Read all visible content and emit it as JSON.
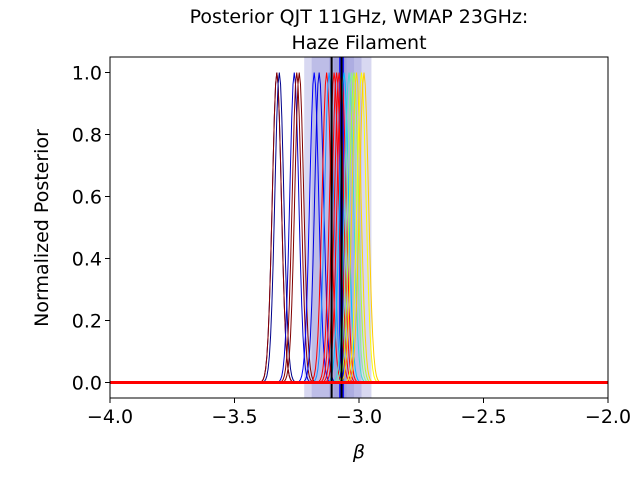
{
  "chart_data": {
    "type": "line",
    "title_lines": [
      "Posterior QJT 11GHz, WMAP 23GHz:",
      "Haze Filament"
    ],
    "xlabel": "β",
    "ylabel": "Normalized Posterior",
    "xlim": [
      -4.0,
      -2.0
    ],
    "ylim": [
      -0.05,
      1.05
    ],
    "x_ticks": [
      -4.0,
      -3.5,
      -3.0,
      -2.5,
      -2.0
    ],
    "x_tick_labels": [
      "−4.0",
      "−3.5",
      "−3.0",
      "−2.5",
      "−2.0"
    ],
    "y_ticks": [
      0.0,
      0.2,
      0.4,
      0.6,
      0.8,
      1.0
    ],
    "y_tick_labels": [
      "0.0",
      "0.2",
      "0.4",
      "0.6",
      "0.8",
      "1.0"
    ],
    "grid": false,
    "legend": "none",
    "shaded_bands": [
      {
        "x_range": [
          -3.22,
          -2.95
        ],
        "color": "#7f7fd0",
        "opacity": 0.3
      },
      {
        "x_range": [
          -3.19,
          -2.99
        ],
        "color": "#7f7fd0",
        "opacity": 0.3
      },
      {
        "x_range": [
          -3.12,
          -3.02
        ],
        "color": "#7f7fd0",
        "opacity": 0.25
      },
      {
        "x_range": [
          -3.1,
          -3.05
        ],
        "color": "#7f7fd0",
        "opacity": 0.25
      },
      {
        "x_range": [
          -3.08,
          -3.06
        ],
        "color": "#0000ff",
        "opacity": 0.85
      }
    ],
    "vertical_lines": [
      {
        "x": -3.11,
        "color": "#000000",
        "width": 2
      },
      {
        "x": -3.07,
        "color": "#000000",
        "width": 2
      }
    ],
    "series": [
      {
        "center": -3.33,
        "sigma": 0.018,
        "color": "#000080"
      },
      {
        "center": -3.33,
        "sigma": 0.018,
        "color": "#8b0000"
      },
      {
        "center": -3.32,
        "sigma": 0.018,
        "color": "#00008b"
      },
      {
        "center": -3.26,
        "sigma": 0.018,
        "color": "#0000cd"
      },
      {
        "center": -3.25,
        "sigma": 0.018,
        "color": "#8b0000"
      },
      {
        "center": -3.24,
        "sigma": 0.018,
        "color": "#800000"
      },
      {
        "center": -3.18,
        "sigma": 0.018,
        "color": "#0000ff"
      },
      {
        "center": -3.16,
        "sigma": 0.018,
        "color": "#0000dd"
      },
      {
        "center": -3.13,
        "sigma": 0.018,
        "color": "#ff0000"
      },
      {
        "center": -3.12,
        "sigma": 0.018,
        "color": "#1e90ff"
      },
      {
        "center": -3.1,
        "sigma": 0.018,
        "color": "#ff0000"
      },
      {
        "center": -3.09,
        "sigma": 0.018,
        "color": "#ff0000"
      },
      {
        "center": -3.08,
        "sigma": 0.018,
        "color": "#ff0000"
      },
      {
        "center": -3.07,
        "sigma": 0.018,
        "color": "#ff0000"
      },
      {
        "center": -3.06,
        "sigma": 0.018,
        "color": "#00bfff"
      },
      {
        "center": -3.04,
        "sigma": 0.018,
        "color": "#40e0d0"
      },
      {
        "center": -3.03,
        "sigma": 0.018,
        "color": "#90ee90"
      },
      {
        "center": -3.02,
        "sigma": 0.018,
        "color": "#adff2f"
      },
      {
        "center": -3.01,
        "sigma": 0.018,
        "color": "#ffd700"
      },
      {
        "center": -2.99,
        "sigma": 0.018,
        "color": "#ffff00"
      },
      {
        "center": -2.98,
        "sigma": 0.018,
        "color": "#ffcc00"
      }
    ],
    "baseline": {
      "y": 0.0,
      "color": "#ff0000",
      "width": 3
    }
  }
}
